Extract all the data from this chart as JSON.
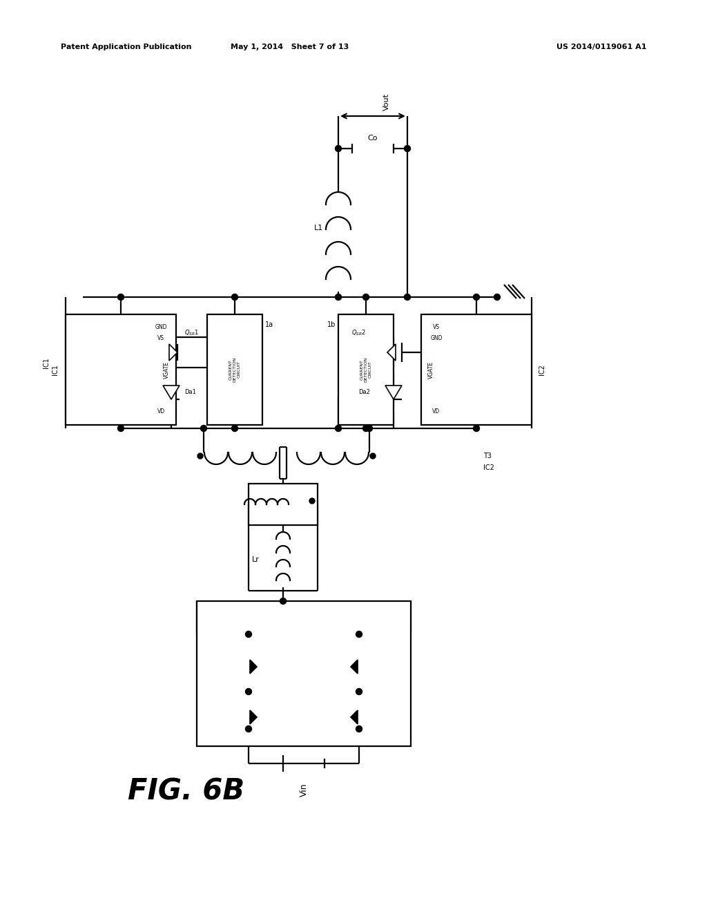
{
  "title_left": "Patent Application Publication",
  "title_mid": "May 1, 2014   Sheet 7 of 13",
  "title_right": "US 2014/0119061 A1",
  "fig_label": "FIG. 6B",
  "bg_color": "#ffffff",
  "line_color": "#000000"
}
